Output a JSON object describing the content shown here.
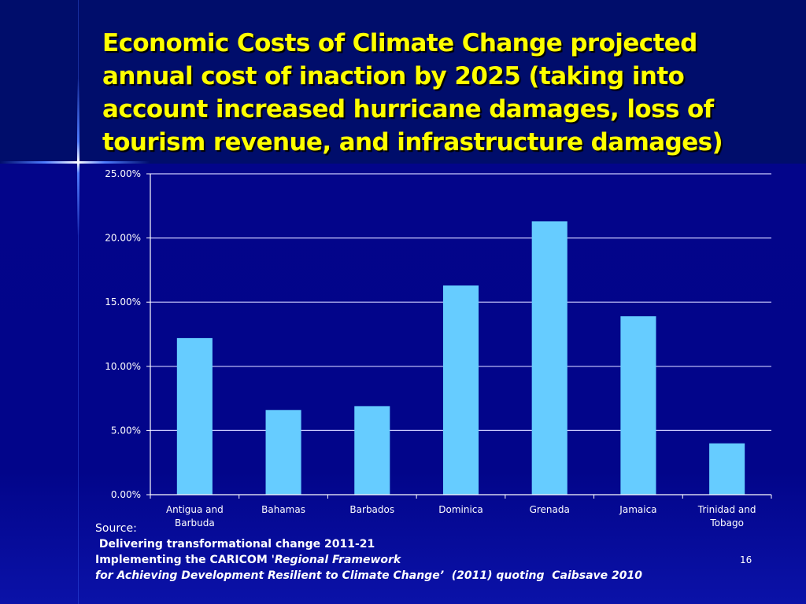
{
  "slide": {
    "title": "Economic Costs of Climate Change projected annual cost of inaction by 2025 (taking into account increased hurricane damages, loss of tourism revenue, and infrastructure damages)",
    "title_lines": [
      "Economic Costs of Climate Change projected",
      "annual cost of inaction by 2025 (taking into",
      "account increased hurricane damages, loss of",
      "tourism revenue, and infrastructure damages)"
    ],
    "page_number": "16",
    "colors": {
      "title": "#ffff00",
      "bar": "#66ccff",
      "background": "#000a7a",
      "gridline": "#ccccff"
    }
  },
  "source": {
    "label": "Source:",
    "line1": " Delivering transformational change 2011-21",
    "line2_bold": "Implementing the CARICOM ",
    "line2_italic": "'Regional Framework",
    "line3_italic": "for Achieving Development Resilient to Climate Change’  (2011) quoting  Caibsave 2010"
  },
  "chart_data": {
    "type": "bar",
    "title": "",
    "xlabel": "",
    "ylabel": "",
    "categories": [
      [
        "Antigua and",
        "Barbuda"
      ],
      [
        "Bahamas"
      ],
      [
        "Barbados"
      ],
      [
        "Dominica"
      ],
      [
        "Grenada"
      ],
      [
        "Jamaica"
      ],
      [
        "Trinidad and",
        "Tobago"
      ]
    ],
    "category_names": [
      "Antigua and Barbuda",
      "Bahamas",
      "Barbados",
      "Dominica",
      "Grenada",
      "Jamaica",
      "Trinidad and Tobago"
    ],
    "values": [
      12.2,
      6.6,
      6.9,
      16.3,
      21.3,
      13.9,
      4.0
    ],
    "unit": "%",
    "ylim": [
      0,
      25
    ],
    "yticks": [
      0,
      5,
      10,
      15,
      20,
      25
    ],
    "ytick_labels": [
      "0.00%",
      "5.00%",
      "10.00%",
      "15.00%",
      "20.00%",
      "25.00%"
    ],
    "grid": true,
    "legend": "none"
  }
}
